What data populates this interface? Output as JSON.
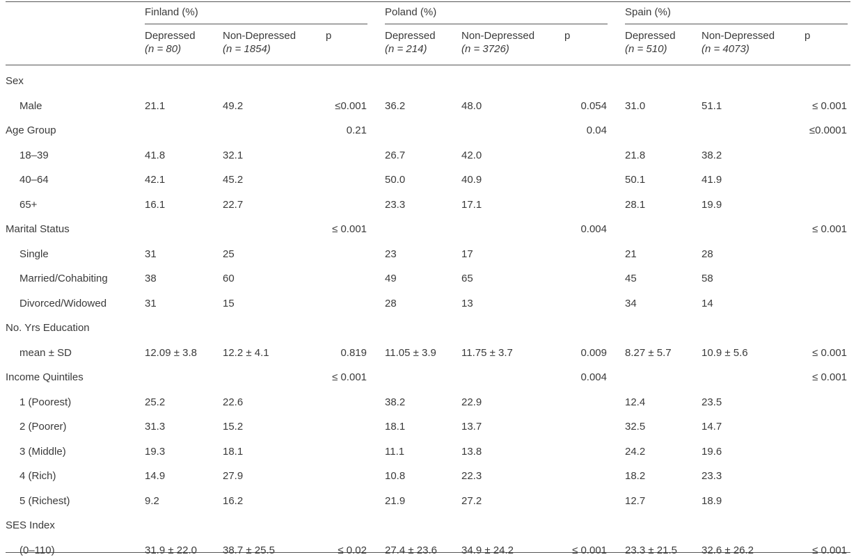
{
  "countries": [
    {
      "name": "Finland (%)",
      "dep_label": "Depressed",
      "dep_n": "(n = 80)",
      "non_label": "Non-Depressed",
      "non_n": "(n = 1854)",
      "p_label": "p"
    },
    {
      "name": "Poland (%)",
      "dep_label": "Depressed",
      "dep_n": "(n = 214)",
      "non_label": "Non-Depressed",
      "non_n": "(n = 3726)",
      "p_label": "p"
    },
    {
      "name": "Spain (%)",
      "dep_label": "Depressed",
      "dep_n": "(n = 510)",
      "non_label": "Non-Depressed",
      "non_n": "(n = 4073)",
      "p_label": "p"
    }
  ],
  "rows": [
    {
      "label": "Sex",
      "indent": false,
      "cells": [
        "",
        "",
        "",
        "",
        "",
        "",
        "",
        "",
        ""
      ]
    },
    {
      "label": "Male",
      "indent": true,
      "cells": [
        "21.1",
        "49.2",
        "≤0.001",
        "36.2",
        "48.0",
        "0.054",
        "31.0",
        "51.1",
        "≤ 0.001"
      ]
    },
    {
      "label": "Age Group",
      "indent": false,
      "cells": [
        "",
        "",
        "0.21",
        "",
        "",
        "0.04",
        "",
        "",
        "≤0.0001"
      ]
    },
    {
      "label": "18–39",
      "indent": true,
      "cells": [
        "41.8",
        "32.1",
        "",
        "26.7",
        "42.0",
        "",
        "21.8",
        "38.2",
        ""
      ]
    },
    {
      "label": "40–64",
      "indent": true,
      "cells": [
        "42.1",
        "45.2",
        "",
        "50.0",
        "40.9",
        "",
        "50.1",
        "41.9",
        ""
      ]
    },
    {
      "label": "65+",
      "indent": true,
      "cells": [
        "16.1",
        "22.7",
        "",
        "23.3",
        "17.1",
        "",
        "28.1",
        "19.9",
        ""
      ]
    },
    {
      "label": "Marital Status",
      "indent": false,
      "cells": [
        "",
        "",
        "≤ 0.001",
        "",
        "",
        "0.004",
        "",
        "",
        "≤ 0.001"
      ]
    },
    {
      "label": "Single",
      "indent": true,
      "cells": [
        "31",
        "25",
        "",
        "23",
        "17",
        "",
        "21",
        "28",
        ""
      ]
    },
    {
      "label": "Married/Cohabiting",
      "indent": true,
      "cells": [
        "38",
        "60",
        "",
        "49",
        "65",
        "",
        "45",
        "58",
        ""
      ]
    },
    {
      "label": "Divorced/Widowed",
      "indent": true,
      "cells": [
        "31",
        "15",
        "",
        "28",
        "13",
        "",
        "34",
        "14",
        ""
      ]
    },
    {
      "label": "No. Yrs Education",
      "indent": false,
      "cells": [
        "",
        "",
        "",
        "",
        "",
        "",
        "",
        "",
        ""
      ]
    },
    {
      "label": "mean ± SD",
      "indent": true,
      "cells": [
        "12.09 ± 3.8",
        "12.2 ± 4.1",
        "0.819",
        "11.05 ± 3.9",
        "11.75 ± 3.7",
        "0.009",
        "8.27 ± 5.7",
        "10.9 ± 5.6",
        "≤ 0.001"
      ]
    },
    {
      "label": "Income Quintiles",
      "indent": false,
      "cells": [
        "",
        "",
        "≤ 0.001",
        "",
        "",
        "0.004",
        "",
        "",
        "≤ 0.001"
      ]
    },
    {
      "label": "1 (Poorest)",
      "indent": true,
      "cells": [
        "25.2",
        "22.6",
        "",
        "38.2",
        "22.9",
        "",
        "12.4",
        "23.5",
        ""
      ]
    },
    {
      "label": "2 (Poorer)",
      "indent": true,
      "cells": [
        "31.3",
        "15.2",
        "",
        "18.1",
        "13.7",
        "",
        "32.5",
        "14.7",
        ""
      ]
    },
    {
      "label": "3 (Middle)",
      "indent": true,
      "cells": [
        "19.3",
        "18.1",
        "",
        "11.1",
        "13.8",
        "",
        "24.2",
        "19.6",
        ""
      ]
    },
    {
      "label": "4 (Rich)",
      "indent": true,
      "cells": [
        "14.9",
        "27.9",
        "",
        "10.8",
        "22.3",
        "",
        "18.2",
        "23.3",
        ""
      ]
    },
    {
      "label": "5 (Richest)",
      "indent": true,
      "cells": [
        "9.2",
        "16.2",
        "",
        "21.9",
        "27.2",
        "",
        "12.7",
        "18.9",
        ""
      ]
    },
    {
      "label": "SES Index",
      "indent": false,
      "cells": [
        "",
        "",
        "",
        "",
        "",
        "",
        "",
        "",
        ""
      ]
    },
    {
      "label": "(0–110)",
      "indent": true,
      "cells": [
        "31.9 ± 22.0",
        "38.7 ± 25.5",
        "≤ 0.02",
        "27.4 ± 23.6",
        "34.9 ± 24.2",
        "≤ 0.001",
        "23.3 ± 21.5",
        "32.6 ± 26.2",
        "≤ 0.001"
      ]
    }
  ]
}
